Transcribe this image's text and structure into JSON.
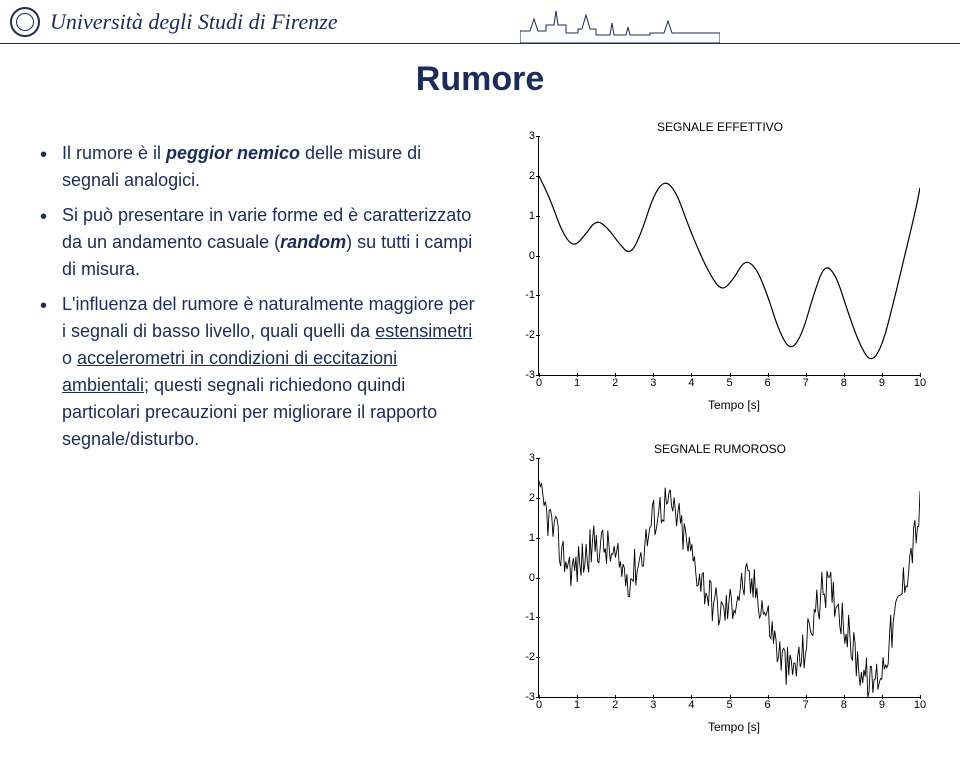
{
  "header": {
    "university": "Università degli Studi di Firenze"
  },
  "title": "Rumore",
  "bullets": [
    {
      "pre": "Il rumore è il ",
      "strong": "peggior nemico",
      "post": " delle misure di segnali analogici."
    },
    {
      "pre": "Si può presentare in varie forme ed è caratterizzato da un andamento casuale (",
      "strong": "random",
      "post": ") su tutti i campi di misura."
    },
    {
      "pre": "L'influenza del rumore è naturalmente maggiore per i segnali di basso livello, quali quelli da ",
      "u1": "estensimetri",
      "mid1": " o ",
      "u2": "accelerometri in condizioni di eccitazioni ambientali",
      "post": "; questi segnali richiedono quindi particolari precauzioni per migliorare il rapporto segnale/disturbo."
    }
  ],
  "chart1": {
    "type": "line",
    "title": "SEGNALE EFFETTIVO",
    "xlabel": "Tempo [s]",
    "xlim": [
      0,
      10
    ],
    "ylim": [
      -3,
      3
    ],
    "xticks": [
      0,
      1,
      2,
      3,
      4,
      5,
      6,
      7,
      8,
      9,
      10
    ],
    "yticks": [
      -3,
      -2,
      -1,
      0,
      1,
      2,
      3
    ],
    "stroke_color": "#000000",
    "stroke_width": 1.2,
    "background_color": "#ffffff",
    "data": [
      [
        0,
        2.0
      ],
      [
        0.3,
        1.4
      ],
      [
        0.6,
        0.6
      ],
      [
        0.9,
        0.2
      ],
      [
        1.2,
        0.5
      ],
      [
        1.5,
        0.9
      ],
      [
        1.8,
        0.7
      ],
      [
        2.1,
        0.3
      ],
      [
        2.4,
        0.0
      ],
      [
        2.7,
        0.6
      ],
      [
        3.0,
        1.5
      ],
      [
        3.3,
        1.9
      ],
      [
        3.6,
        1.6
      ],
      [
        3.9,
        0.8
      ],
      [
        4.2,
        0.1
      ],
      [
        4.5,
        -0.5
      ],
      [
        4.8,
        -0.9
      ],
      [
        5.1,
        -0.6
      ],
      [
        5.4,
        -0.1
      ],
      [
        5.7,
        -0.3
      ],
      [
        6.0,
        -1.0
      ],
      [
        6.3,
        -1.9
      ],
      [
        6.6,
        -2.4
      ],
      [
        6.9,
        -2.0
      ],
      [
        7.2,
        -1.0
      ],
      [
        7.5,
        -0.2
      ],
      [
        7.8,
        -0.5
      ],
      [
        8.1,
        -1.4
      ],
      [
        8.4,
        -2.2
      ],
      [
        8.7,
        -2.7
      ],
      [
        9.0,
        -2.3
      ],
      [
        9.3,
        -1.2
      ],
      [
        9.6,
        0.0
      ],
      [
        9.9,
        1.2
      ],
      [
        10,
        1.7
      ]
    ]
  },
  "chart2": {
    "type": "line",
    "title": "SEGNALE RUMOROSO",
    "xlabel": "Tempo [s]",
    "xlim": [
      0,
      10
    ],
    "ylim": [
      -3,
      3
    ],
    "xticks": [
      0,
      1,
      2,
      3,
      4,
      5,
      6,
      7,
      8,
      9,
      10
    ],
    "yticks": [
      -3,
      -2,
      -1,
      0,
      1,
      2,
      3
    ],
    "stroke_color": "#000000",
    "stroke_width": 0.9,
    "background_color": "#ffffff",
    "noise_amp": 0.55,
    "noise_pts": 300,
    "base": [
      [
        0,
        2.0
      ],
      [
        0.3,
        1.4
      ],
      [
        0.6,
        0.6
      ],
      [
        0.9,
        0.2
      ],
      [
        1.2,
        0.5
      ],
      [
        1.5,
        0.9
      ],
      [
        1.8,
        0.7
      ],
      [
        2.1,
        0.3
      ],
      [
        2.4,
        0.0
      ],
      [
        2.7,
        0.6
      ],
      [
        3.0,
        1.5
      ],
      [
        3.3,
        1.9
      ],
      [
        3.6,
        1.6
      ],
      [
        3.9,
        0.8
      ],
      [
        4.2,
        0.1
      ],
      [
        4.5,
        -0.5
      ],
      [
        4.8,
        -0.9
      ],
      [
        5.1,
        -0.6
      ],
      [
        5.4,
        -0.1
      ],
      [
        5.7,
        -0.3
      ],
      [
        6.0,
        -1.0
      ],
      [
        6.3,
        -1.9
      ],
      [
        6.6,
        -2.4
      ],
      [
        6.9,
        -2.0
      ],
      [
        7.2,
        -1.0
      ],
      [
        7.5,
        -0.2
      ],
      [
        7.8,
        -0.5
      ],
      [
        8.1,
        -1.4
      ],
      [
        8.4,
        -2.2
      ],
      [
        8.7,
        -2.7
      ],
      [
        9.0,
        -2.3
      ],
      [
        9.3,
        -1.2
      ],
      [
        9.6,
        0.0
      ],
      [
        9.9,
        1.2
      ],
      [
        10,
        1.7
      ]
    ]
  },
  "colors": {
    "primary": "#1a2b5c",
    "axis": "#000000",
    "bg": "#ffffff"
  }
}
